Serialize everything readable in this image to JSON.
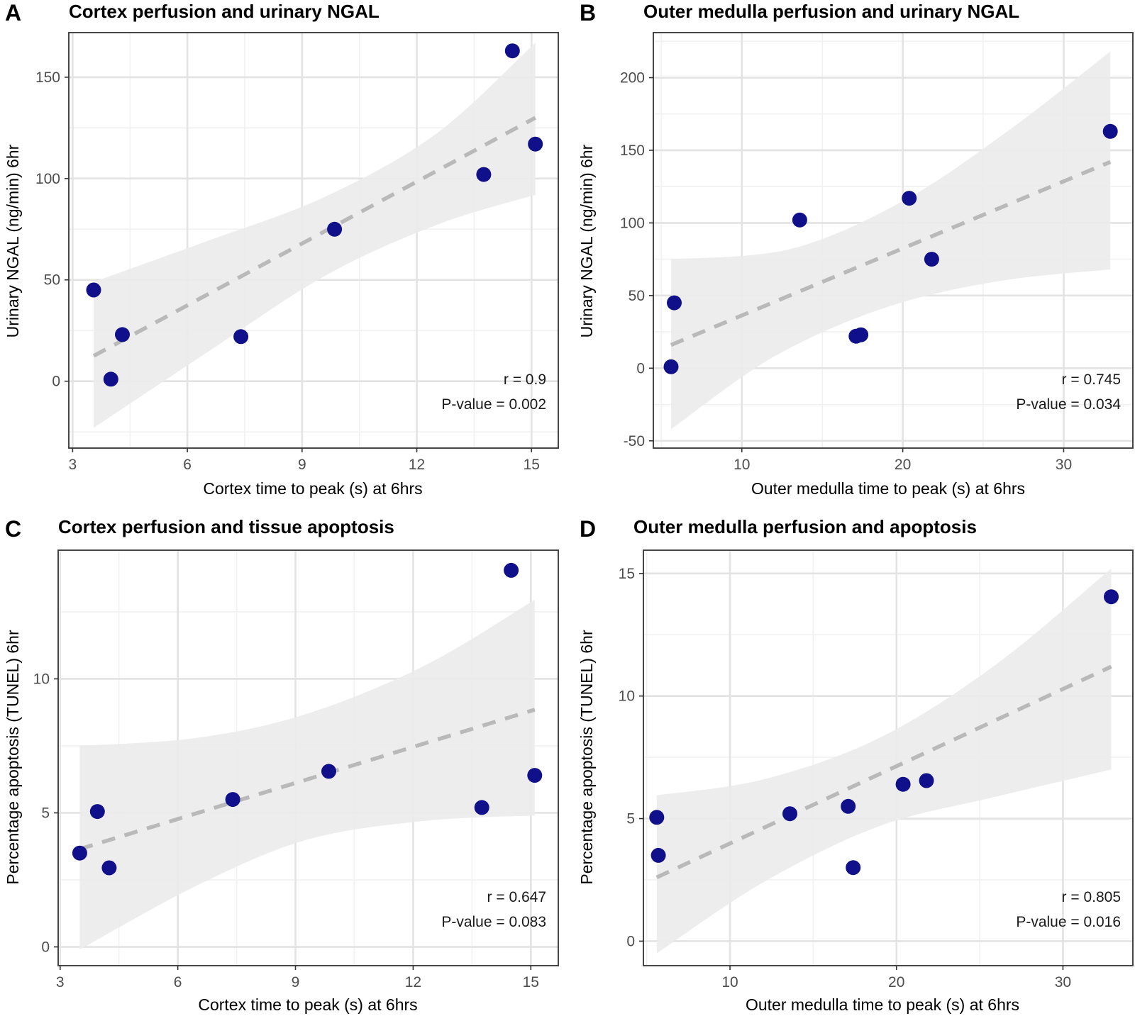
{
  "colors": {
    "point": "#10108a",
    "trend": "#b9b9b9",
    "ribbon": "#ebebeb",
    "grid_major": "#e3e3e3",
    "grid_minor": "#f1f1f1",
    "frame": "#333333"
  },
  "chart_data": [
    {
      "type": "scatter",
      "panel_letter": "A",
      "title": "Cortex perfusion and urinary NGAL",
      "xlabel": "Cortex time to peak (s) at 6hrs",
      "ylabel": "Urinary NGAL (ng/min) 6hr",
      "xlim": [
        2.9,
        15.7
      ],
      "ylim": [
        -33,
        172
      ],
      "x_ticks": [
        3,
        6,
        9,
        12,
        15
      ],
      "x_tick_labels": [
        "3",
        "6",
        "9",
        "12",
        "15"
      ],
      "y_ticks": [
        0,
        50,
        100,
        150
      ],
      "y_tick_labels": [
        "0",
        "50",
        "100",
        "150"
      ],
      "x": [
        3.55,
        4.0,
        4.3,
        7.4,
        9.85,
        13.75,
        14.5,
        15.1
      ],
      "y": [
        45,
        1,
        23,
        22,
        75,
        102,
        163,
        117
      ],
      "trend": {
        "x0": 3.55,
        "y0": 12.5,
        "x1": 15.1,
        "y1": 130
      },
      "ribbon_upper": [
        {
          "x": 3.55,
          "y": 49
        },
        {
          "x": 6.5,
          "y": 69
        },
        {
          "x": 9.6,
          "y": 91
        },
        {
          "x": 12.5,
          "y": 122
        },
        {
          "x": 15.1,
          "y": 167
        }
      ],
      "ribbon_lower": [
        {
          "x": 3.55,
          "y": -23
        },
        {
          "x": 6.5,
          "y": 14
        },
        {
          "x": 9.6,
          "y": 52
        },
        {
          "x": 12.5,
          "y": 77
        },
        {
          "x": 15.1,
          "y": 92
        }
      ],
      "stats": {
        "r": "r = 0.9",
        "p": "P-value = 0.002"
      }
    },
    {
      "type": "scatter",
      "panel_letter": "B",
      "title": "Outer medulla perfusion and urinary NGAL",
      "xlabel": "Outer medulla time to peak (s) at 6hrs",
      "ylabel": "Urinary NGAL (ng/min) 6hr",
      "xlim": [
        4.5,
        34.3
      ],
      "ylim": [
        -55,
        231
      ],
      "x_ticks": [
        10,
        20,
        30
      ],
      "x_tick_labels": [
        "10",
        "20",
        "30"
      ],
      "y_ticks": [
        -50,
        0,
        50,
        100,
        150,
        200
      ],
      "y_tick_labels": [
        "-50",
        "0",
        "50",
        "100",
        "150",
        "200"
      ],
      "x": [
        5.6,
        5.8,
        13.6,
        17.1,
        17.4,
        20.4,
        21.8,
        32.9
      ],
      "y": [
        1,
        45,
        102,
        22,
        23,
        117,
        75,
        163
      ],
      "trend": {
        "x0": 5.6,
        "y0": 16,
        "x1": 32.9,
        "y1": 142
      },
      "ribbon_upper": [
        {
          "x": 5.6,
          "y": 75
        },
        {
          "x": 13,
          "y": 82
        },
        {
          "x": 20,
          "y": 115
        },
        {
          "x": 26.5,
          "y": 163
        },
        {
          "x": 32.9,
          "y": 218
        }
      ],
      "ribbon_lower": [
        {
          "x": 5.6,
          "y": -42
        },
        {
          "x": 12,
          "y": 8
        },
        {
          "x": 19,
          "y": 42
        },
        {
          "x": 26,
          "y": 60
        },
        {
          "x": 32.9,
          "y": 68
        }
      ],
      "stats": {
        "r": "r = 0.745",
        "p": "P-value = 0.034"
      }
    },
    {
      "type": "scatter",
      "panel_letter": "C",
      "title": "Cortex perfusion and tissue apoptosis",
      "xlabel": "Cortex time to peak (s) at 6hrs",
      "ylabel": "Percentage apoptosis (TUNEL) 6hr",
      "xlim": [
        2.95,
        15.7
      ],
      "ylim": [
        -0.7,
        14.8
      ],
      "x_ticks": [
        3,
        6,
        9,
        12,
        15
      ],
      "x_tick_labels": [
        "3",
        "6",
        "9",
        "12",
        "15"
      ],
      "y_ticks": [
        0,
        5,
        10
      ],
      "y_tick_labels": [
        "0",
        "5",
        "10"
      ],
      "x": [
        3.5,
        3.95,
        4.25,
        7.4,
        9.85,
        13.75,
        14.5,
        15.1
      ],
      "y": [
        3.5,
        5.05,
        2.95,
        5.5,
        6.55,
        5.2,
        14.05,
        6.4
      ],
      "trend": {
        "x0": 3.5,
        "y0": 3.65,
        "x1": 15.1,
        "y1": 8.85
      },
      "ribbon_upper": [
        {
          "x": 3.5,
          "y": 7.5
        },
        {
          "x": 6.5,
          "y": 7.8
        },
        {
          "x": 9.3,
          "y": 8.7
        },
        {
          "x": 12.3,
          "y": 10.5
        },
        {
          "x": 15.1,
          "y": 12.95
        }
      ],
      "ribbon_lower": [
        {
          "x": 3.5,
          "y": -0.1
        },
        {
          "x": 6.5,
          "y": 2.3
        },
        {
          "x": 9.3,
          "y": 4.0
        },
        {
          "x": 12.3,
          "y": 4.7
        },
        {
          "x": 15.1,
          "y": 4.9
        }
      ],
      "stats": {
        "r": "r = 0.647",
        "p": "P-value = 0.083"
      }
    },
    {
      "type": "scatter",
      "panel_letter": "D",
      "title": "Outer medulla perfusion and apoptosis",
      "xlabel": "Outer medulla time to peak (s) at 6hrs",
      "ylabel": "Percentage apoptosis (TUNEL) 6hr",
      "xlim": [
        4.8,
        34.2
      ],
      "ylim": [
        -1.0,
        15.95
      ],
      "x_ticks": [
        10,
        20,
        30
      ],
      "x_tick_labels": [
        "10",
        "20",
        "30"
      ],
      "y_ticks": [
        0,
        5,
        10,
        15
      ],
      "y_tick_labels": [
        "0",
        "5",
        "10",
        "15"
      ],
      "x": [
        5.6,
        5.7,
        13.6,
        17.1,
        17.4,
        20.4,
        21.8,
        32.9
      ],
      "y": [
        5.05,
        3.5,
        5.2,
        5.5,
        3.0,
        6.4,
        6.55,
        14.05
      ],
      "trend": {
        "x0": 5.6,
        "y0": 2.6,
        "x1": 32.9,
        "y1": 11.2
      },
      "ribbon_upper": [
        {
          "x": 5.6,
          "y": 5.95
        },
        {
          "x": 12,
          "y": 6.6
        },
        {
          "x": 19,
          "y": 8.3
        },
        {
          "x": 26,
          "y": 11.3
        },
        {
          "x": 32.9,
          "y": 15.2
        }
      ],
      "ribbon_lower": [
        {
          "x": 5.6,
          "y": -0.5
        },
        {
          "x": 12,
          "y": 2.4
        },
        {
          "x": 19,
          "y": 4.7
        },
        {
          "x": 26,
          "y": 5.9
        },
        {
          "x": 32.9,
          "y": 7.0
        }
      ],
      "stats": {
        "r": "r = 0.805",
        "p": "P-value = 0.016"
      }
    }
  ]
}
